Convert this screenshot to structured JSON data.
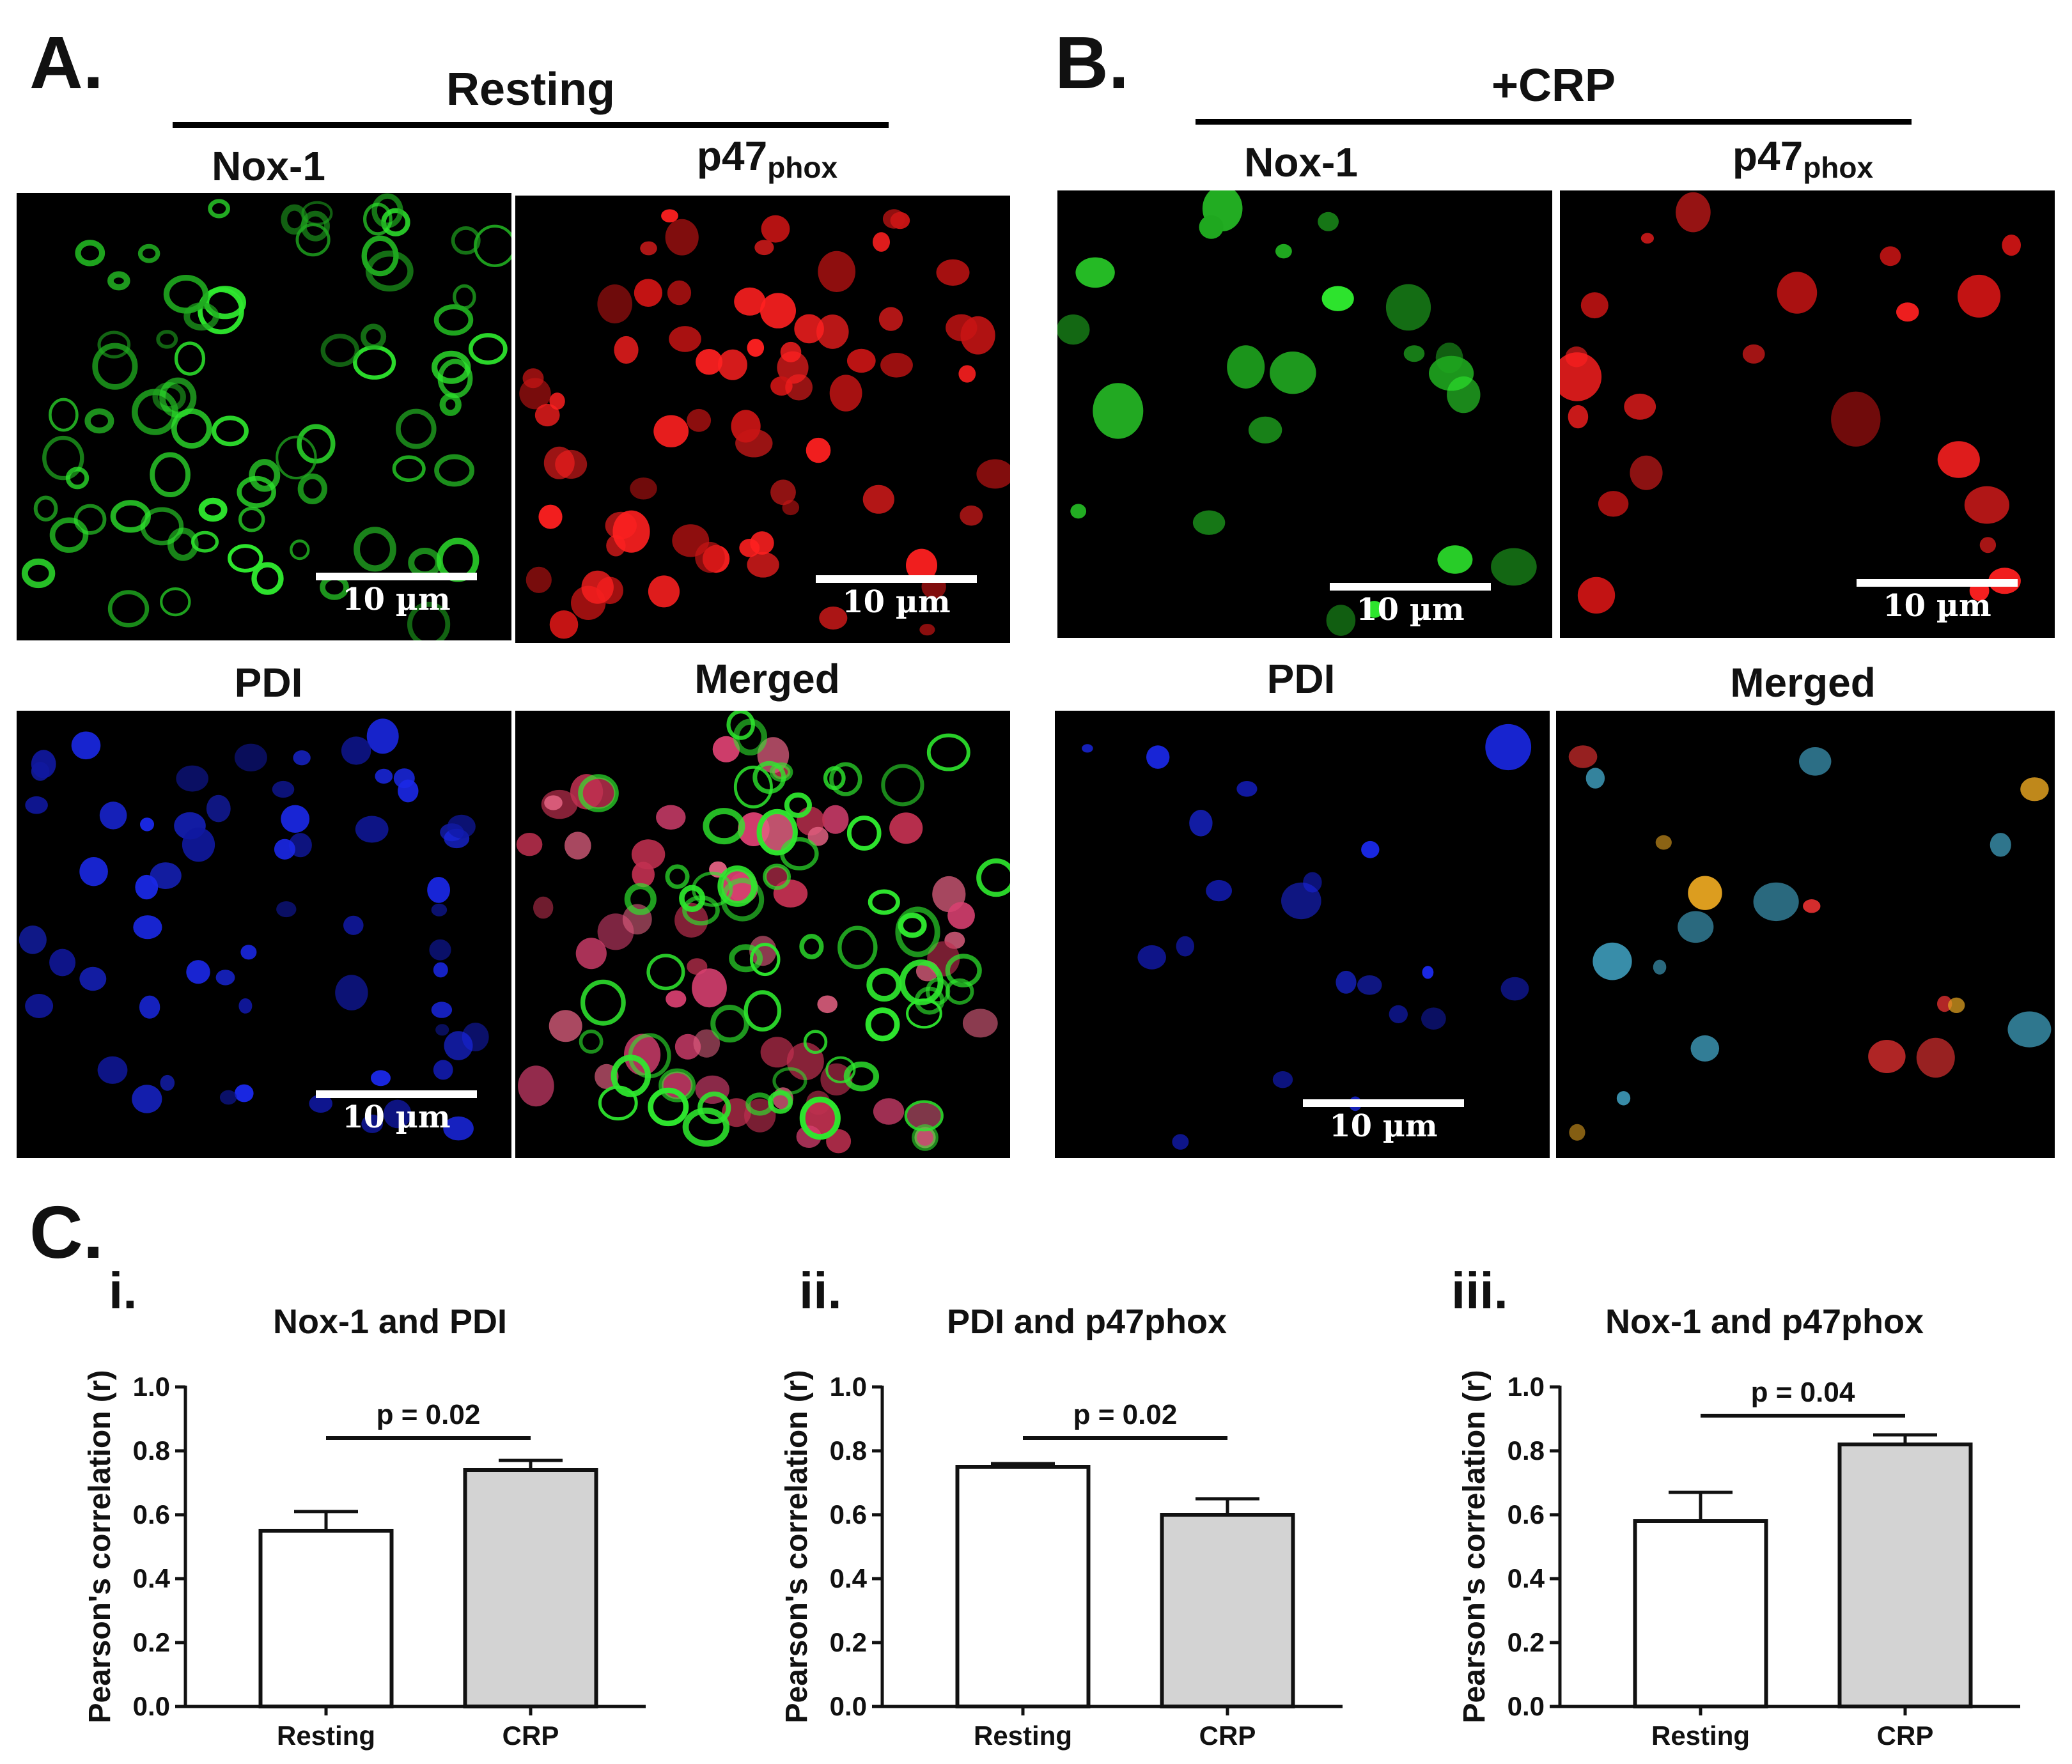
{
  "panel_a": {
    "letter": "A.",
    "group_title": "Resting",
    "labels": {
      "nox1": "Nox-1",
      "p47": "p47",
      "p47_sub": "phox",
      "pdi": "PDI",
      "merged": "Merged"
    },
    "scale_bar": "10 µm"
  },
  "panel_b": {
    "letter": "B.",
    "group_title": "+CRP",
    "labels": {
      "nox1": "Nox-1",
      "p47": "p47",
      "p47_sub": "phox",
      "pdi": "PDI",
      "merged": "Merged"
    },
    "scale_bar": "10 µm"
  },
  "panel_c": {
    "letter": "C."
  },
  "colors": {
    "nox1": "#2ee82e",
    "p47": "#ff2020",
    "pdi": "#1a28e6",
    "bar_resting": "#ffffff",
    "bar_crp": "#d3d3d3",
    "outline": "#111111"
  },
  "chart_data": [
    {
      "type": "bar",
      "index_label": "i.",
      "title": "Nox-1 and PDI",
      "ylabel": "Pearson's correlation (r)",
      "xlabel": "",
      "categories": [
        "Resting",
        "CRP"
      ],
      "values": [
        0.55,
        0.74
      ],
      "errors": [
        0.06,
        0.03
      ],
      "ylim": [
        0.0,
        1.0
      ],
      "yticks": [
        "0.0",
        "0.2",
        "0.4",
        "0.6",
        "0.8",
        "1.0"
      ],
      "significance": {
        "text": "p = 0.02",
        "y": 0.84
      }
    },
    {
      "type": "bar",
      "index_label": "ii.",
      "title": "PDI and p47phox",
      "ylabel": "Pearson's correlation (r)",
      "xlabel": "",
      "categories": [
        "Resting",
        "CRP"
      ],
      "values": [
        0.75,
        0.6
      ],
      "errors": [
        0.01,
        0.05
      ],
      "ylim": [
        0.0,
        1.0
      ],
      "yticks": [
        "0.0",
        "0.2",
        "0.4",
        "0.6",
        "0.8",
        "1.0"
      ],
      "significance": {
        "text": "p = 0.02",
        "y": 0.84
      }
    },
    {
      "type": "bar",
      "index_label": "iii.",
      "title": "Nox-1 and p47phox",
      "ylabel": "Pearson's correlation (r)",
      "xlabel": "",
      "categories": [
        "Resting",
        "CRP"
      ],
      "values": [
        0.58,
        0.82
      ],
      "errors": [
        0.09,
        0.03
      ],
      "ylim": [
        0.0,
        1.0
      ],
      "yticks": [
        "0.0",
        "0.2",
        "0.4",
        "0.6",
        "0.8",
        "1.0"
      ],
      "significance": {
        "text": "p = 0.04",
        "y": 0.91
      }
    }
  ]
}
